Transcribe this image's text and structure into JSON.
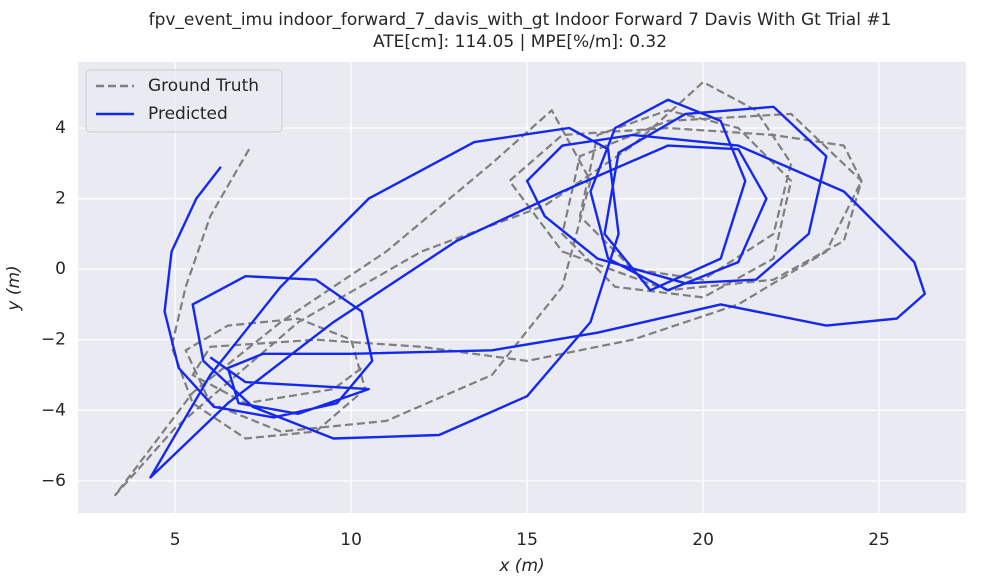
{
  "chart_data": {
    "type": "line",
    "title": "fpv_event_imu indoor_forward_7_davis_with_gt Indoor Forward 7 Davis With Gt Trial #1",
    "subtitle": "ATE[cm]: 114.05 | MPE[%/m]: 0.32",
    "x_label": "x (m)",
    "y_label": "y (m)",
    "xlim": [
      2.24,
      27.47
    ],
    "ylim": [
      -6.91,
      5.87
    ],
    "xticks": [
      5,
      10,
      15,
      20,
      25
    ],
    "yticks": [
      {
        "value": -6,
        "label": "−6"
      },
      {
        "value": -4,
        "label": "−4"
      },
      {
        "value": -2,
        "label": "−2"
      },
      0,
      2,
      4
    ],
    "grid": true,
    "legend": "upper left",
    "series": [
      {
        "name": "Ground Truth",
        "color": "#7f7f7f",
        "dashed": true,
        "x": [
          7.1,
          6.0,
          5.3,
          4.9,
          5.5,
          7.0,
          9.0,
          10.4,
          10.0,
          8.5,
          6.5,
          5.3,
          6.0,
          8.0,
          11,
          14,
          16,
          16.8,
          15.7,
          14,
          11,
          8,
          5.5,
          3.3,
          5,
          8.5,
          12,
          15.5,
          18,
          20,
          21.5,
          22.5,
          22,
          20,
          18,
          16.5,
          17,
          19,
          21,
          22.5,
          22,
          20,
          17.5,
          16,
          16.5,
          19,
          22.5,
          24.5,
          24,
          22,
          19,
          16,
          14.5,
          16,
          19,
          22,
          24,
          24.5,
          23.5,
          21,
          18,
          15,
          12,
          9,
          6,
          5.5,
          7,
          9.5,
          10.3
        ],
        "y": [
          3.4,
          1.5,
          -0.5,
          -2.2,
          -3.8,
          -4.8,
          -4.6,
          -3.4,
          -2.0,
          -1.4,
          -1.6,
          -2.3,
          -3.8,
          -4.6,
          -4.3,
          -3.0,
          -0.5,
          2.5,
          4.5,
          3,
          0.5,
          -1.5,
          -3.5,
          -6.4,
          -4.5,
          -1.5,
          0.5,
          1.8,
          3.5,
          5.3,
          4.5,
          3,
          1,
          -0.3,
          0,
          1.5,
          3.8,
          4.5,
          4,
          2.5,
          0.3,
          -0.8,
          -0.5,
          1,
          3.2,
          4.2,
          4.4,
          2.5,
          0.8,
          -0.3,
          -0.6,
          0.5,
          2.5,
          3.8,
          4.0,
          3.8,
          3.5,
          2.5,
          0.5,
          -1.0,
          -2.0,
          -2.6,
          -2.2,
          -2.0,
          -2.2,
          -3.0,
          -3.8,
          -3.4,
          -2.8
        ]
      },
      {
        "name": "Predicted",
        "color": "#1428f0",
        "dashed": false,
        "x": [
          6.3,
          5.6,
          4.9,
          4.7,
          5.1,
          6.1,
          7.8,
          9.6,
          10.6,
          10.3,
          9.0,
          7.0,
          5.5,
          5.8,
          7.2,
          9.5,
          12.5,
          15.0,
          16.8,
          17.6,
          17.3,
          16.2,
          13.5,
          10.5,
          8.0,
          6.0,
          4.3,
          6.5,
          9.5,
          13,
          16,
          19,
          21,
          21.8,
          21,
          19,
          17.3,
          16.8,
          17.5,
          19,
          20.5,
          21.2,
          20.5,
          18.5,
          17.2,
          17.6,
          19.5,
          22,
          23.5,
          23,
          21.5,
          19.5,
          17,
          15.5,
          15.0,
          16,
          18,
          21,
          24,
          26,
          26.3,
          25.5,
          23.5,
          20.5,
          17,
          14,
          10,
          7.5,
          6.5,
          6.8,
          8.5,
          10.5,
          7,
          6
        ],
        "y": [
          2.9,
          2.0,
          0.5,
          -1.2,
          -2.8,
          -3.9,
          -4.2,
          -3.8,
          -2.6,
          -1.2,
          -0.3,
          -0.2,
          -1.0,
          -2.6,
          -3.9,
          -4.8,
          -4.7,
          -3.6,
          -1.5,
          1.0,
          3.4,
          4.0,
          3.6,
          2.0,
          -0.5,
          -3.0,
          -5.9,
          -3.8,
          -1.5,
          0.8,
          2.2,
          3.5,
          3.4,
          2,
          0.2,
          -0.6,
          0.3,
          2.2,
          4,
          4.8,
          4.2,
          2.5,
          0.3,
          -0.6,
          1.0,
          3.3,
          4.4,
          4.6,
          3.2,
          1,
          -0.3,
          -0.4,
          0.3,
          1.5,
          2.5,
          3.5,
          3.8,
          3.5,
          2.2,
          0.2,
          -0.7,
          -1.4,
          -1.6,
          -1.0,
          -1.8,
          -2.3,
          -2.4,
          -2.4,
          -2.8,
          -3.8,
          -4.1,
          -3.4,
          -3.2,
          -2.5
        ]
      }
    ]
  }
}
